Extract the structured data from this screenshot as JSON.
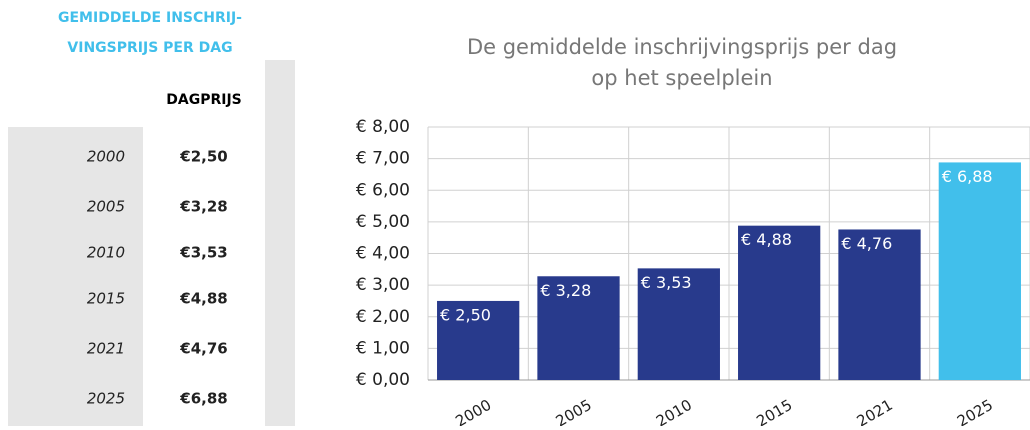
{
  "table": {
    "title": [
      "GEMIDDELDE INSCHRIJ-",
      "VINGSPRIJS PER DAG"
    ],
    "header": "DAGPRIJS",
    "rows": [
      [
        "2000",
        "€2,50"
      ],
      [
        "2005",
        "€3,28"
      ],
      [
        "2010",
        "€3,53"
      ],
      [
        "2015",
        "€4,88"
      ],
      [
        "2021",
        "€4,76"
      ],
      [
        "2025",
        "€6,88"
      ]
    ]
  },
  "chart_data": {
    "type": "bar",
    "title": [
      "De gemiddelde inschrijvingsprijs per dag",
      "op het speelplein"
    ],
    "categories": [
      "2000",
      "2005",
      "2010",
      "2015",
      "2021",
      "2025"
    ],
    "values": [
      2.5,
      3.28,
      3.53,
      4.88,
      4.76,
      6.88
    ],
    "value_labels": [
      "€ 2,50",
      "€ 3,28",
      "€ 3,53",
      "€ 4,88",
      "€ 4,76",
      "€ 6,88"
    ],
    "colors": [
      "#283a8c",
      "#283a8c",
      "#283a8c",
      "#283a8c",
      "#283a8c",
      "#41bfeb"
    ],
    "ylim": [
      0,
      8
    ],
    "yticks": [
      {
        "value": 0,
        "label": "€ 0,00"
      },
      {
        "value": 1,
        "label": "€ 1,00"
      },
      {
        "value": 2,
        "label": "€ 2,00"
      },
      {
        "value": 3,
        "label": "€ 3,00"
      },
      {
        "value": 4,
        "label": "€ 4,00"
      },
      {
        "value": 5,
        "label": "€ 5,00"
      },
      {
        "value": 6,
        "label": "€ 6,00"
      },
      {
        "value": 7,
        "label": "€ 7,00"
      },
      {
        "value": 8,
        "label": "€ 8,00"
      }
    ],
    "grid": true
  }
}
